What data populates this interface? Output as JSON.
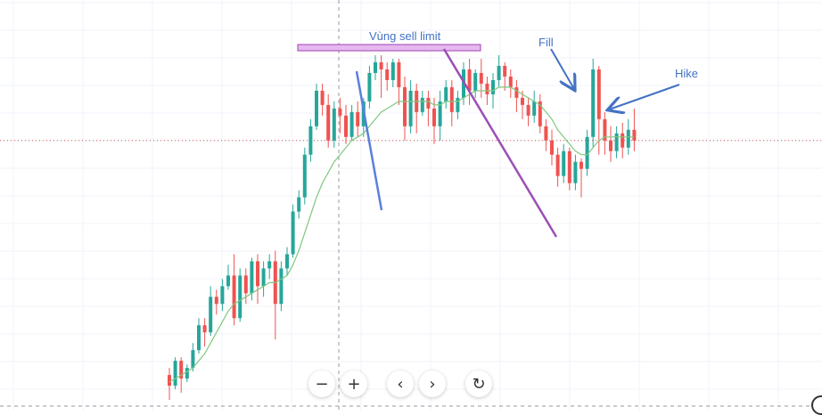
{
  "chart_data": {
    "type": "candlestick",
    "title": "",
    "xlabel": "",
    "ylabel": "",
    "ylim": [
      0,
      100
    ],
    "grid": true,
    "colors": {
      "up": "#26a69a",
      "down": "#ef5350",
      "ma": "#7fc87f",
      "blue_line": "#5b7fdb",
      "purple_line": "#9b4fb5",
      "zone_fill": "#e6b8f0",
      "zone_border": "#a040b0",
      "annotation": "#4472c4",
      "price_line": "#d9534f"
    },
    "candles": [
      [
        10,
        7,
        12,
        3
      ],
      [
        7,
        14,
        15,
        6
      ],
      [
        14,
        9,
        15,
        5
      ],
      [
        9,
        12,
        13,
        8
      ],
      [
        12,
        17,
        19,
        11
      ],
      [
        17,
        24,
        26,
        16
      ],
      [
        24,
        22,
        26,
        18
      ],
      [
        22,
        32,
        35,
        21
      ],
      [
        32,
        30,
        34,
        27
      ],
      [
        30,
        35,
        37,
        28
      ],
      [
        35,
        38,
        41,
        34
      ],
      [
        38,
        26,
        44,
        24
      ],
      [
        26,
        38,
        40,
        25
      ],
      [
        38,
        33,
        40,
        30
      ],
      [
        33,
        42,
        43,
        31
      ],
      [
        42,
        35,
        44,
        30
      ],
      [
        35,
        40,
        42,
        32
      ],
      [
        40,
        42,
        44,
        37
      ],
      [
        42,
        30,
        45,
        20
      ],
      [
        30,
        40,
        42,
        28
      ],
      [
        40,
        44,
        46,
        38
      ],
      [
        44,
        56,
        58,
        43
      ],
      [
        56,
        60,
        62,
        54
      ],
      [
        60,
        72,
        74,
        58
      ],
      [
        72,
        80,
        82,
        70
      ],
      [
        80,
        90,
        92,
        79
      ],
      [
        90,
        86,
        92,
        83
      ],
      [
        86,
        76,
        89,
        74
      ],
      [
        76,
        85,
        87,
        74
      ],
      [
        85,
        83,
        88,
        78
      ],
      [
        83,
        77,
        86,
        75
      ],
      [
        77,
        84,
        86,
        76
      ],
      [
        84,
        80,
        87,
        77
      ],
      [
        80,
        87,
        88,
        77
      ],
      [
        87,
        95,
        97,
        85
      ],
      [
        95,
        98,
        100,
        93
      ],
      [
        98,
        96,
        100,
        88
      ],
      [
        96,
        93,
        98,
        90
      ],
      [
        93,
        98,
        99,
        91
      ],
      [
        98,
        91,
        99,
        86
      ],
      [
        91,
        80,
        94,
        76
      ],
      [
        80,
        90,
        93,
        78
      ],
      [
        90,
        84,
        92,
        78
      ],
      [
        84,
        88,
        90,
        83
      ],
      [
        88,
        85,
        90,
        80
      ],
      [
        85,
        80,
        88,
        75
      ],
      [
        80,
        87,
        90,
        76
      ],
      [
        87,
        91,
        93,
        85
      ],
      [
        91,
        84,
        93,
        80
      ],
      [
        84,
        88,
        90,
        82
      ],
      [
        88,
        96,
        98,
        86
      ],
      [
        96,
        90,
        99,
        86
      ],
      [
        90,
        95,
        96,
        88
      ],
      [
        95,
        92,
        99,
        88
      ],
      [
        92,
        89,
        94,
        86
      ],
      [
        89,
        93,
        95,
        85
      ],
      [
        93,
        97,
        100,
        91
      ],
      [
        97,
        94,
        98,
        90
      ],
      [
        94,
        91,
        96,
        88
      ],
      [
        91,
        88,
        93,
        84
      ],
      [
        88,
        86,
        90,
        82
      ],
      [
        86,
        83,
        88,
        80
      ],
      [
        83,
        87,
        90,
        81
      ],
      [
        87,
        80,
        89,
        78
      ],
      [
        80,
        76,
        82,
        73
      ],
      [
        76,
        72,
        79,
        69
      ],
      [
        72,
        66,
        74,
        63
      ],
      [
        66,
        73,
        75,
        64
      ],
      [
        73,
        64,
        74,
        62
      ],
      [
        64,
        70,
        72,
        62
      ],
      [
        70,
        68,
        71,
        60
      ],
      [
        68,
        77,
        79,
        66
      ],
      [
        77,
        96,
        99,
        74
      ],
      [
        96,
        82,
        97,
        72
      ],
      [
        82,
        76,
        84,
        72
      ],
      [
        76,
        73,
        80,
        70
      ],
      [
        73,
        78,
        80,
        71
      ],
      [
        78,
        74,
        81,
        71
      ],
      [
        74,
        79,
        82,
        72
      ],
      [
        79,
        76,
        85,
        73
      ]
    ],
    "ma_values": [
      8,
      9,
      10,
      11,
      12,
      14,
      16,
      19,
      22,
      25,
      28,
      30,
      31,
      32,
      33,
      34,
      35,
      36,
      36,
      37,
      38,
      41,
      45,
      50,
      55,
      60,
      64,
      67,
      70,
      72,
      74,
      76,
      77,
      78,
      80,
      82,
      84,
      85,
      86,
      87,
      87,
      87,
      87,
      87,
      87,
      86,
      86,
      87,
      87,
      87,
      88,
      89,
      90,
      90,
      90,
      90,
      91,
      91,
      91,
      90,
      89,
      88,
      87,
      86,
      84,
      82,
      79,
      77,
      75,
      73,
      72,
      72,
      74,
      76,
      77,
      77,
      77,
      77,
      77,
      77
    ],
    "annotations": [
      {
        "id": "zone",
        "text": "Vùng sell limit"
      },
      {
        "id": "fill",
        "text": "Fill"
      },
      {
        "id": "hike",
        "text": "Hike"
      }
    ]
  },
  "toolbar": {
    "zoom_out": "−",
    "zoom_in": "+",
    "scroll_left": "‹",
    "scroll_right": "›",
    "reset": "↻"
  }
}
